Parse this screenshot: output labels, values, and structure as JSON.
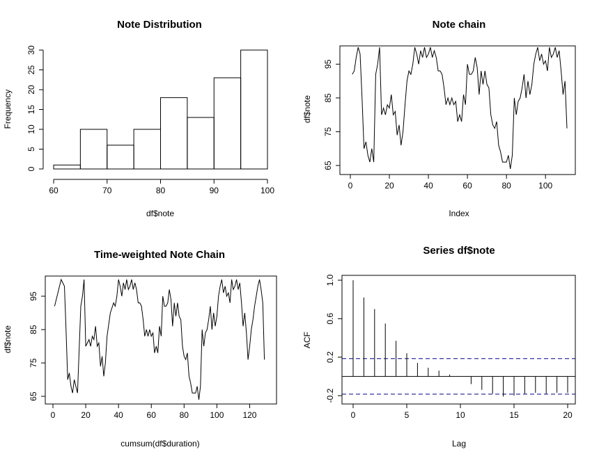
{
  "chart_data": [
    {
      "type": "histogram",
      "title": "Note Distribution",
      "xlabel": "df$note",
      "ylabel": "Frequency",
      "bins": [
        60,
        65,
        70,
        75,
        80,
        85,
        90,
        95,
        100
      ],
      "values": [
        1,
        10,
        6,
        10,
        18,
        13,
        23,
        30
      ],
      "xlim": [
        60,
        100
      ],
      "ylim": [
        0,
        30
      ],
      "xticks": [
        60,
        70,
        80,
        90,
        100
      ],
      "yticks": [
        0,
        5,
        10,
        15,
        20,
        25,
        30
      ]
    },
    {
      "type": "line",
      "title": "Note chain",
      "xlabel": "Index",
      "ylabel": "df$note",
      "xlim": [
        0,
        111
      ],
      "ylim": [
        65,
        100
      ],
      "xticks": [
        0,
        20,
        40,
        60,
        80,
        100
      ],
      "yticks": [
        65,
        75,
        85,
        95
      ],
      "y": [
        92,
        93,
        97,
        100,
        98,
        85,
        70,
        72,
        68,
        66,
        70,
        66,
        92,
        95,
        100,
        80,
        82,
        80,
        83,
        82,
        86,
        80,
        81,
        74,
        77,
        71,
        75,
        83,
        90,
        93,
        92,
        95,
        100,
        98,
        95,
        99,
        97,
        100,
        97,
        98,
        100,
        97,
        99,
        97,
        93,
        93,
        92,
        88,
        83,
        85,
        83,
        85,
        83,
        84,
        78,
        80,
        78,
        86,
        83,
        95,
        92,
        92,
        93,
        97,
        94,
        86,
        93,
        89,
        93,
        89,
        88,
        80,
        77,
        76,
        78,
        71,
        69,
        66,
        66,
        66,
        68,
        64,
        68,
        85,
        80,
        84,
        85,
        88,
        92,
        85,
        90,
        86,
        89,
        95,
        98,
        100,
        96,
        98,
        95,
        96,
        93,
        100,
        97,
        98,
        100,
        97,
        99,
        93,
        86,
        90,
        76
      ],
      "x_start": 1
    },
    {
      "type": "line",
      "title": "Time-weighted Note Chain",
      "xlabel": "cumsum(df$duration)",
      "ylabel": "df$note",
      "xlim": [
        0,
        130
      ],
      "ylim": [
        63,
        101
      ],
      "xticks": [
        0,
        20,
        40,
        60,
        80,
        100,
        120
      ],
      "yticks": [
        65,
        75,
        85,
        95
      ],
      "x": [
        1,
        3,
        5,
        7,
        8,
        9,
        10,
        11,
        12,
        13,
        15,
        17,
        18,
        19,
        20,
        22,
        23,
        24,
        25,
        26,
        27,
        28,
        29,
        30,
        31,
        32,
        33,
        35,
        37,
        38,
        39,
        40,
        41,
        42,
        43,
        44,
        45,
        46,
        47,
        48,
        49,
        50,
        51,
        52,
        53,
        54,
        55,
        56,
        57,
        58,
        59,
        60,
        61,
        62,
        63,
        64,
        65,
        66,
        67,
        68,
        69,
        70,
        71,
        72,
        73,
        74,
        75,
        76,
        77,
        78,
        79,
        80,
        81,
        82,
        83,
        84,
        85,
        86,
        87,
        88,
        89,
        90,
        91,
        92,
        93,
        94,
        95,
        96,
        97,
        98,
        99,
        100,
        101,
        102,
        103,
        104,
        105,
        106,
        107,
        108,
        109,
        110,
        111,
        112,
        113,
        114,
        115,
        116,
        117,
        118,
        119,
        120,
        121,
        122,
        123,
        124,
        125,
        126,
        127,
        128,
        129
      ],
      "y": [
        92,
        96,
        100,
        98,
        85,
        70,
        72,
        68,
        66,
        70,
        66,
        92,
        95,
        100,
        80,
        82,
        80,
        83,
        82,
        86,
        80,
        81,
        74,
        77,
        71,
        75,
        83,
        90,
        93,
        92,
        95,
        100,
        98,
        95,
        99,
        97,
        100,
        97,
        98,
        100,
        97,
        99,
        97,
        93,
        93,
        92,
        88,
        83,
        85,
        83,
        85,
        83,
        84,
        78,
        80,
        78,
        86,
        83,
        95,
        92,
        92,
        93,
        97,
        94,
        86,
        93,
        89,
        93,
        89,
        88,
        80,
        77,
        76,
        78,
        71,
        69,
        66,
        66,
        66,
        68,
        64,
        68,
        85,
        80,
        84,
        85,
        88,
        92,
        85,
        90,
        86,
        89,
        95,
        98,
        100,
        96,
        98,
        95,
        96,
        93,
        100,
        97,
        98,
        100,
        97,
        99,
        93,
        86,
        90,
        84,
        76,
        80,
        85,
        88,
        92,
        95,
        98,
        100,
        97,
        93,
        76
      ]
    },
    {
      "type": "bar",
      "title": "Series  df$note",
      "xlabel": "Lag",
      "ylabel": "ACF",
      "lags": [
        0,
        1,
        2,
        3,
        4,
        5,
        6,
        7,
        8,
        9,
        10,
        11,
        12,
        13,
        14,
        15,
        16,
        17,
        18,
        19,
        20
      ],
      "values": [
        1.0,
        0.82,
        0.7,
        0.55,
        0.37,
        0.24,
        0.14,
        0.09,
        0.06,
        0.02,
        0.0,
        -0.08,
        -0.14,
        -0.18,
        -0.21,
        -0.2,
        -0.18,
        -0.17,
        -0.18,
        -0.17,
        -0.17
      ],
      "ci": 0.185,
      "xlim": [
        0,
        20
      ],
      "ylim": [
        -0.25,
        1.0
      ],
      "xticks": [
        0,
        5,
        10,
        15,
        20
      ],
      "yticks": [
        -0.2,
        0.2,
        0.6,
        1.0
      ],
      "ytick_labels": [
        "-0.2",
        "0.2",
        "0.6",
        "1.0"
      ]
    }
  ]
}
